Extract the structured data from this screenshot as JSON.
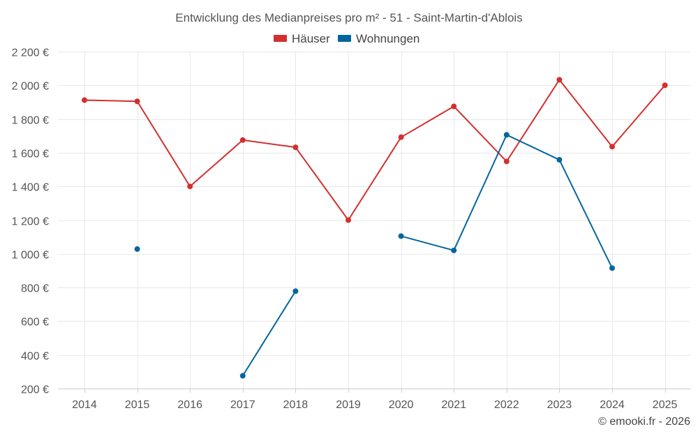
{
  "chart_data": {
    "type": "line",
    "title": "Entwicklung des Medianpreises pro m² - 51 - Saint-Martin-d'Ablois",
    "xlabel": "",
    "ylabel": "",
    "categories": [
      "2014",
      "2015",
      "2016",
      "2017",
      "2018",
      "2019",
      "2020",
      "2021",
      "2022",
      "2023",
      "2024",
      "2025"
    ],
    "ylim": [
      200,
      2200
    ],
    "yticks": [
      200,
      400,
      600,
      800,
      1000,
      1200,
      1400,
      1600,
      1800,
      2000,
      2200
    ],
    "ytick_labels": [
      "200 €",
      "400 €",
      "600 €",
      "800 €",
      "1 000 €",
      "1 200 €",
      "1 400 €",
      "1 600 €",
      "1 800 €",
      "2 000 €",
      "2 200 €"
    ],
    "legend_position": "top-center",
    "grid": true,
    "series": [
      {
        "name": "Häuser",
        "color": "#d32f2f",
        "values": [
          1912,
          1905,
          1400,
          1675,
          1632,
          1200,
          1692,
          1875,
          1548,
          2033,
          1636,
          2000
        ]
      },
      {
        "name": "Wohnungen",
        "color": "#03669e",
        "values": [
          null,
          1028,
          null,
          276,
          778,
          null,
          1105,
          1020,
          1706,
          1558,
          915,
          null
        ]
      }
    ]
  },
  "credit": "© emooki.fr - 2026"
}
